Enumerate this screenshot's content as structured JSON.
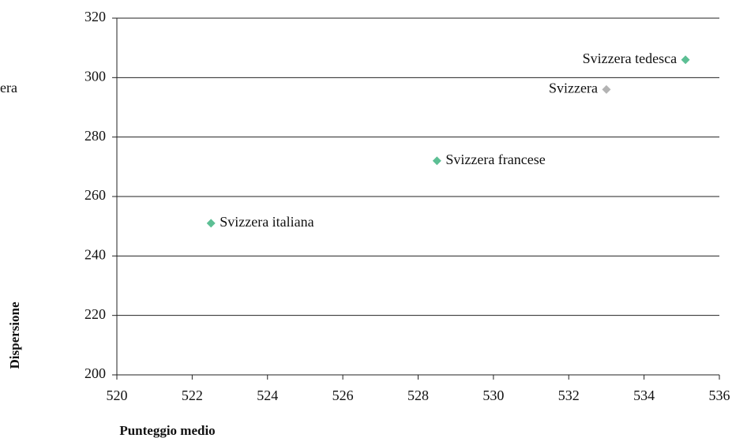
{
  "chart_data": {
    "type": "scatter",
    "x_label": "Punteggio medio",
    "y_label": "Dispersione",
    "annotation": "era",
    "points": [
      {
        "name": "Svizzera tedesca",
        "x": 535.1,
        "y": 306,
        "color": "#5cbf94"
      },
      {
        "name": "Svizzera",
        "x": 533,
        "y": 296,
        "color": "#b3b3b3"
      },
      {
        "name": "Svizzera francese",
        "x": 528.5,
        "y": 272,
        "color": "#5cbf94"
      },
      {
        "name": "Svizzera italiana",
        "x": 522.5,
        "y": 251,
        "color": "#5cbf94"
      }
    ],
    "xlim": [
      520,
      536
    ],
    "xticks": [
      520,
      522,
      524,
      526,
      528,
      530,
      532,
      534,
      536
    ],
    "ylim": [
      200,
      320
    ],
    "yticks": [
      200,
      220,
      240,
      260,
      280,
      300,
      320
    ],
    "grid": true
  }
}
